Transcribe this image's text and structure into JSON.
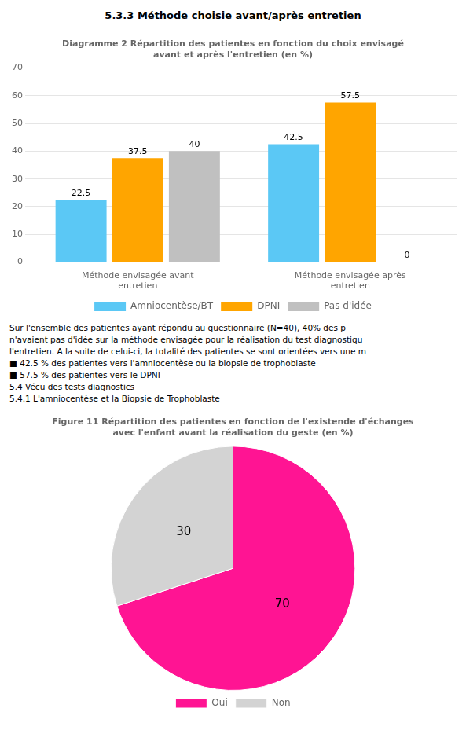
{
  "chart_data": [
    {
      "type": "bar",
      "title": "Diagramme 2 Répartition des patientes en fonction du choix envisagé\navant et après l'entretien (en %)",
      "annotations": [
        "5.3.3    Méthode choisie avant/après entretien"
      ],
      "categories": [
        "Méthode envisagée avant\nentretien",
        "Méthode envisagée après\nentretien"
      ],
      "series": [
        {
          "name": "Amniocentèse/BT",
          "color": "#5BC8F5",
          "values": [
            22.5,
            42.5
          ]
        },
        {
          "name": "DPNI",
          "color": "#FFA500",
          "values": [
            37.5,
            57.5
          ]
        },
        {
          "name": "Pas d'idée",
          "color": "#C0C0C0",
          "values": [
            40,
            0
          ]
        }
      ],
      "ylim": [
        0,
        70
      ],
      "yticks": [
        0,
        10,
        20,
        30,
        40,
        50,
        60,
        70
      ],
      "grid": true,
      "legend": "bottom",
      "data_labels": true
    },
    {
      "type": "pie",
      "title": "Figure 11 Répartition des patientes en fonction de l'existende d'échanges\navec l'enfant avant la réalisation du geste (en %)",
      "annotations": [
        "Sur l'ensemble des patientes ayant répondu au questionnaire (N=40), 40% des p",
        "n'avaient pas d'idée sur la méthode envisagée pour la réalisation du test diagnostiqu",
        "l'entretien. A la suite de celui-ci, la totalité des patientes se sont orientées vers une m",
        "■  42.5 % des patientes vers l'amniocentèse ou la biopsie de trophoblaste",
        "■  57.5 % des patientes vers le DPNI",
        "5.4 Vécu des tests diagnostics",
        "5.4.1    L'amniocentèse et la Biopsie de Trophoblaste"
      ],
      "categories": [
        "Oui",
        "Non"
      ],
      "values": [
        70,
        30
      ],
      "colors": [
        "#FF1493",
        "#D3D3D3"
      ],
      "legend": "bottom",
      "data_labels": true
    }
  ]
}
